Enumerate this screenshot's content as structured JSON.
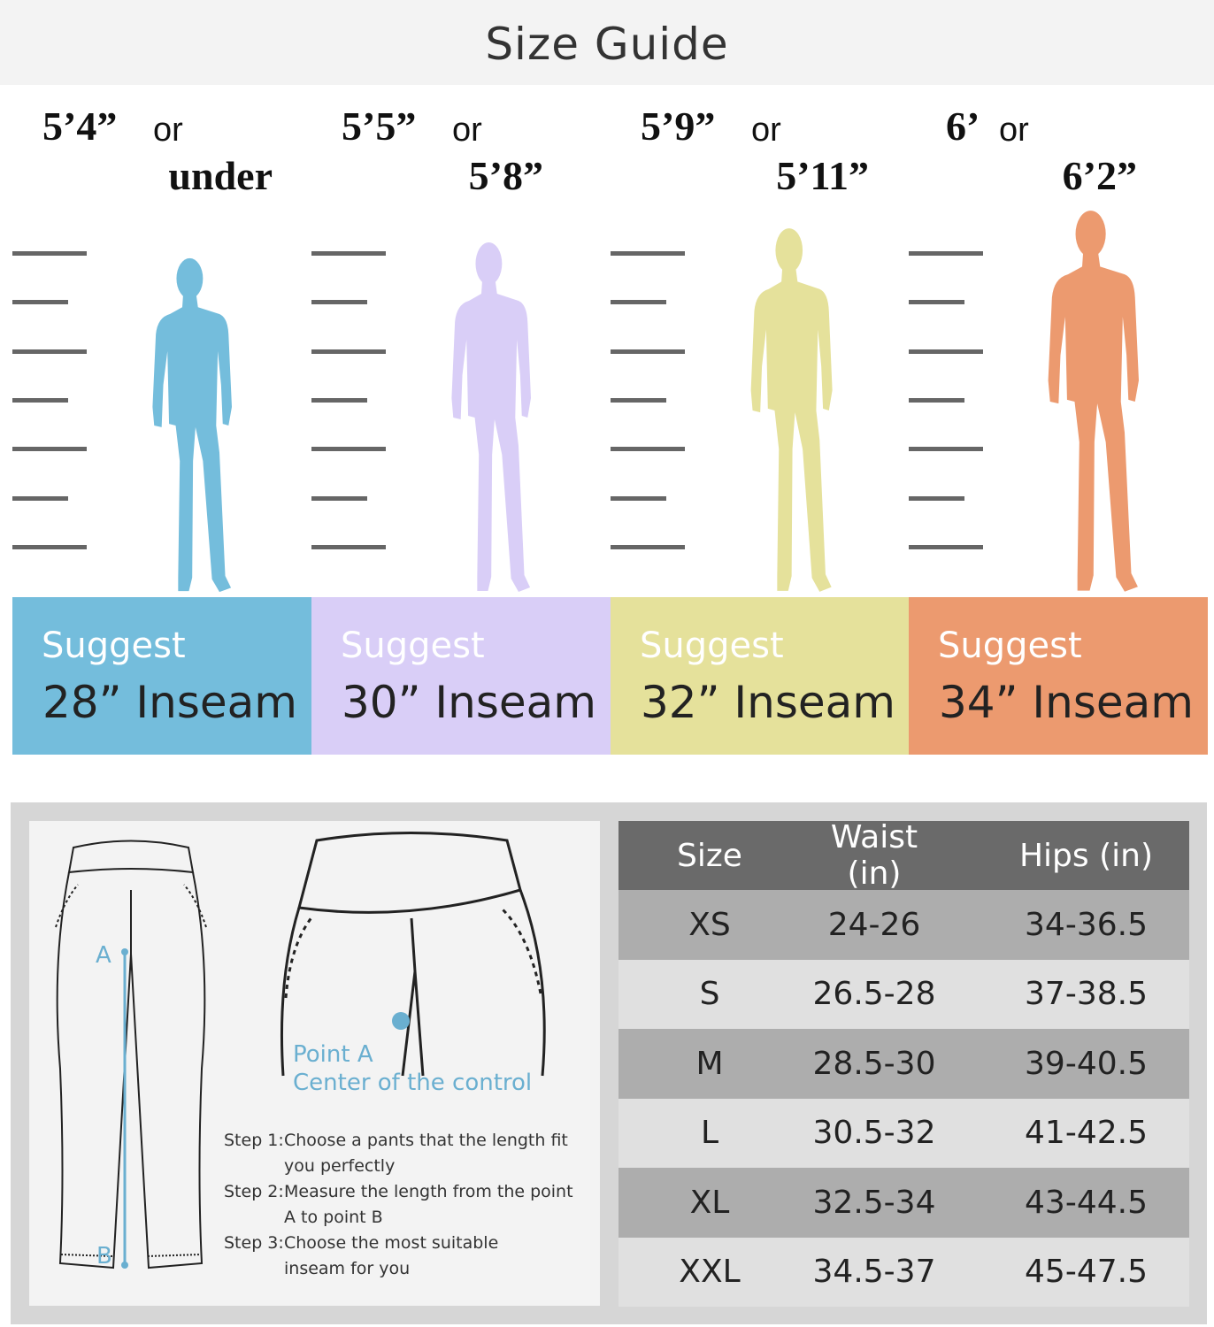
{
  "title": "Size Guide",
  "colors": {
    "blue": "#74bddc",
    "purple": "#d9cef7",
    "yellow": "#e5e19b",
    "orange": "#ec9a6f",
    "point": "#6aafd0"
  },
  "groups": [
    {
      "height_top": "5’4”",
      "or": "or",
      "height_bottom": "under",
      "suggest": "Suggest",
      "inseam": "28” Inseam",
      "color": "#74bddc"
    },
    {
      "height_top": "5’5”",
      "or": "or",
      "height_bottom": "5’8”",
      "suggest": "Suggest",
      "inseam": "30” Inseam",
      "color": "#d9cef7"
    },
    {
      "height_top": "5’9”",
      "or": "or",
      "height_bottom": "5’11”",
      "suggest": "Suggest",
      "inseam": "32” Inseam",
      "color": "#e5e19b"
    },
    {
      "height_top": "6’",
      "or": "or",
      "height_bottom": "6’2”",
      "suggest": "Suggest",
      "inseam": "34” Inseam",
      "color": "#ec9a6f"
    }
  ],
  "diagram": {
    "label_a": "A",
    "label_b": "B",
    "point_a": "Point A",
    "point_a_desc": "Center of the control"
  },
  "steps": [
    {
      "label": "Step 1:",
      "text": "Choose a pants that the length fit you perfectly"
    },
    {
      "label": "Step 2:",
      "text": "Measure the length from the point A to point B"
    },
    {
      "label": "Step 3:",
      "text": "Choose the most suitable inseam for you"
    }
  ],
  "table": {
    "headers": [
      "Size",
      "Waist (in)",
      "Hips (in)"
    ],
    "rows": [
      [
        "XS",
        "24-26",
        "34-36.5"
      ],
      [
        "S",
        "26.5-28",
        "37-38.5"
      ],
      [
        "M",
        "28.5-30",
        "39-40.5"
      ],
      [
        "L",
        "30.5-32",
        "41-42.5"
      ],
      [
        "XL",
        "32.5-34",
        "43-44.5"
      ],
      [
        "XXL",
        "34.5-37",
        "45-47.5"
      ]
    ]
  }
}
